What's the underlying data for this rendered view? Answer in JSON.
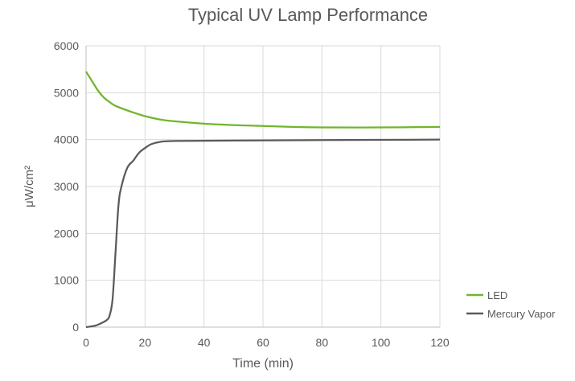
{
  "chart_data": {
    "type": "line",
    "title": "Typical UV Lamp Performance",
    "xlabel": "Time (min)",
    "ylabel": "μW/cm²",
    "xlim": [
      0,
      120
    ],
    "ylim": [
      0,
      6000
    ],
    "xticks": [
      0,
      20,
      40,
      60,
      80,
      100,
      120
    ],
    "yticks": [
      0,
      1000,
      2000,
      3000,
      4000,
      5000,
      6000
    ],
    "grid": true,
    "legend_position": "right",
    "series": [
      {
        "name": "LED",
        "color": "#70b62a",
        "x": [
          0,
          2,
          4,
          6,
          8,
          10,
          15,
          20,
          25,
          30,
          40,
          50,
          60,
          70,
          80,
          100,
          120
        ],
        "y": [
          5450,
          5250,
          5050,
          4900,
          4800,
          4720,
          4600,
          4500,
          4430,
          4390,
          4340,
          4310,
          4290,
          4270,
          4260,
          4260,
          4270
        ]
      },
      {
        "name": "Mercury Vapor",
        "color": "#5a5a5a",
        "x": [
          0,
          3,
          5,
          7,
          8,
          9,
          10,
          11,
          12,
          14,
          16,
          18,
          20,
          22,
          25,
          30,
          50,
          80,
          120
        ],
        "y": [
          0,
          30,
          80,
          150,
          250,
          600,
          1600,
          2600,
          3000,
          3400,
          3550,
          3720,
          3820,
          3900,
          3950,
          3970,
          3980,
          3990,
          4000
        ]
      }
    ]
  }
}
